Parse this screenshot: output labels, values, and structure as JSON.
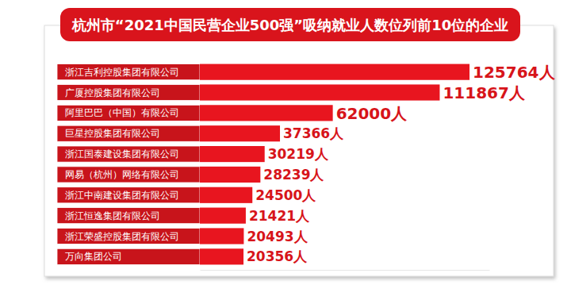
{
  "chart_data": {
    "type": "bar",
    "orientation": "horizontal",
    "title": "杭州市“2021中国民营企业500强”吸纳就业人数位列前10位的企业",
    "categories": [
      "浙江吉利控股集团有限公司",
      "广厦控股集团有限公司",
      "阿里巴巴（中国）有限公司",
      "巨星控股集团有限公司",
      "浙江国泰建设集团有限公司",
      "网易（杭州）网络有限公司",
      "浙江中南建设集团有限公司",
      "浙江恒逸集团有限公司",
      "浙江荣盛控股集团有限公司",
      "万向集团公司"
    ],
    "values": [
      125764,
      111867,
      62000,
      37366,
      30219,
      28239,
      24500,
      21421,
      20493,
      20356
    ],
    "value_labels": [
      "125764人",
      "111867人",
      "62000人",
      "37366人",
      "30219人",
      "28239人",
      "24500人",
      "21421人",
      "20493人",
      "20356人"
    ],
    "data_labels": true,
    "color": "#e8151f",
    "xlim": [
      0,
      135000
    ],
    "tick_labels": false,
    "grid": false
  }
}
